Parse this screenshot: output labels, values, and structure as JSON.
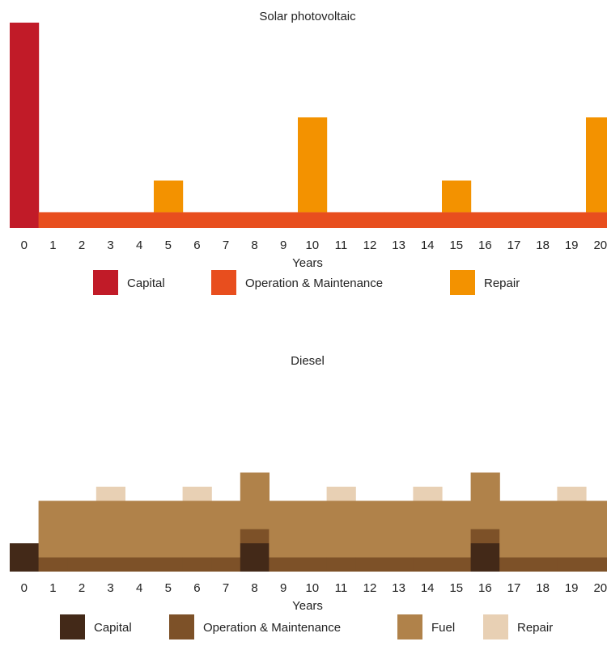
{
  "chart_data": [
    {
      "type": "bar",
      "stacked": true,
      "title": "Solar photovoltaic",
      "xlabel": "Years",
      "ylabel": "",
      "ylim": [
        0,
        6.5
      ],
      "categories": [
        "0",
        "1",
        "2",
        "3",
        "4",
        "5",
        "6",
        "7",
        "8",
        "9",
        "10",
        "11",
        "12",
        "13",
        "14",
        "15",
        "16",
        "17",
        "18",
        "19",
        "20"
      ],
      "series": [
        {
          "name": "Capital",
          "color": "#C11B28",
          "values": [
            6.5,
            0,
            0,
            0,
            0,
            0,
            0,
            0,
            0,
            0,
            0,
            0,
            0,
            0,
            0,
            0,
            0,
            0,
            0,
            0,
            0
          ]
        },
        {
          "name": "Operation & Maintenance",
          "color": "#E84E1E",
          "values": [
            0,
            0.5,
            0.5,
            0.5,
            0.5,
            0.5,
            0.5,
            0.5,
            0.5,
            0.5,
            0.5,
            0.5,
            0.5,
            0.5,
            0.5,
            0.5,
            0.5,
            0.5,
            0.5,
            0.5,
            0.5
          ]
        },
        {
          "name": "Repair",
          "color": "#F39200",
          "values": [
            0,
            0,
            0,
            0,
            0,
            1,
            0,
            0,
            0,
            0,
            3,
            0,
            0,
            0,
            0,
            1,
            0,
            0,
            0,
            0,
            3
          ]
        }
      ],
      "legend": "bottom",
      "grid": false
    },
    {
      "type": "bar",
      "stacked": true,
      "title": "Diesel",
      "xlabel": "Years",
      "ylabel": "",
      "ylim": [
        0,
        7
      ],
      "categories": [
        "0",
        "1",
        "2",
        "3",
        "4",
        "5",
        "6",
        "7",
        "8",
        "9",
        "10",
        "11",
        "12",
        "13",
        "14",
        "15",
        "16",
        "17",
        "18",
        "19",
        "20"
      ],
      "series": [
        {
          "name": "Capital",
          "color": "#432918",
          "values": [
            1,
            0,
            0,
            0,
            0,
            0,
            0,
            0,
            1,
            0,
            0,
            0,
            0,
            0,
            0,
            0,
            1,
            0,
            0,
            0,
            0
          ]
        },
        {
          "name": "Operation & Maintenance",
          "color": "#7D5128",
          "values": [
            0,
            0.5,
            0.5,
            0.5,
            0.5,
            0.5,
            0.5,
            0.5,
            0.5,
            0.5,
            0.5,
            0.5,
            0.5,
            0.5,
            0.5,
            0.5,
            0.5,
            0.5,
            0.5,
            0.5,
            0.5
          ]
        },
        {
          "name": "Fuel",
          "color": "#B0824A",
          "values": [
            0,
            2,
            2,
            2,
            2,
            2,
            2,
            2,
            2,
            2,
            2,
            2,
            2,
            2,
            2,
            2,
            2,
            2,
            2,
            2,
            2
          ]
        },
        {
          "name": "Repair",
          "color": "#E8D0B4",
          "values": [
            0,
            0,
            0,
            0.5,
            0,
            0,
            0.5,
            0,
            0,
            0,
            0,
            0.5,
            0,
            0,
            0.5,
            0,
            0,
            0,
            0,
            0.5,
            0
          ]
        }
      ],
      "legend": "bottom",
      "grid": false
    }
  ]
}
